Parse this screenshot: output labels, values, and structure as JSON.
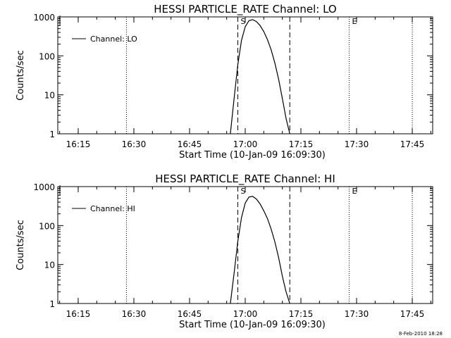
{
  "footer": {
    "timestamp": "8-Feb-2010 18:28"
  },
  "chart_data": [
    {
      "type": "line",
      "title": "HESSI PARTICLE_RATE Channel: LO",
      "xlabel": "Start Time (10-Jan-09 16:09:30)",
      "ylabel": "Counts/sec",
      "y_scale": "log",
      "ylim": [
        1,
        1000
      ],
      "x_unit": "minutes after 16:09:30",
      "xlim": [
        0,
        101
      ],
      "x_tick_labels": [
        "16:15",
        "16:30",
        "16:45",
        "17:00",
        "17:15",
        "17:30",
        "17:45"
      ],
      "y_tick_labels": [
        "1",
        "10",
        "100",
        "1000"
      ],
      "legend": {
        "position": "top-left",
        "entries": [
          "Channel: LO"
        ]
      },
      "markers": [
        {
          "label": "S",
          "time": "16:58",
          "style": "dashed"
        },
        {
          "label": "",
          "time": "17:12",
          "style": "dashed"
        },
        {
          "label": "E",
          "time": "17:28",
          "style": "dotted"
        },
        {
          "label": "",
          "time": "16:28",
          "style": "dotted"
        },
        {
          "label": "",
          "time": "17:45",
          "style": "dotted"
        }
      ],
      "series": [
        {
          "name": "Channel: LO",
          "x": [
            "16:56",
            "16:57",
            "16:58",
            "16:59",
            "17:00",
            "17:01",
            "17:02",
            "17:03",
            "17:04",
            "17:05",
            "17:06",
            "17:07",
            "17:08",
            "17:09",
            "17:10",
            "17:11",
            "17:12"
          ],
          "y": [
            1,
            8,
            60,
            250,
            560,
            800,
            850,
            760,
            600,
            420,
            260,
            140,
            65,
            25,
            8,
            2.5,
            1
          ]
        }
      ]
    },
    {
      "type": "line",
      "title": "HESSI PARTICLE_RATE Channel: HI",
      "xlabel": "Start Time (10-Jan-09 16:09:30)",
      "ylabel": "Counts/sec",
      "y_scale": "log",
      "ylim": [
        1,
        1000
      ],
      "x_unit": "minutes after 16:09:30",
      "xlim": [
        0,
        101
      ],
      "x_tick_labels": [
        "16:15",
        "16:30",
        "16:45",
        "17:00",
        "17:15",
        "17:30",
        "17:45"
      ],
      "y_tick_labels": [
        "1",
        "10",
        "100",
        "1000"
      ],
      "legend": {
        "position": "top-left",
        "entries": [
          "Channel: HI"
        ]
      },
      "markers": [
        {
          "label": "S",
          "time": "16:58",
          "style": "dashed"
        },
        {
          "label": "",
          "time": "17:12",
          "style": "dashed"
        },
        {
          "label": "E",
          "time": "17:28",
          "style": "dotted"
        },
        {
          "label": "",
          "time": "16:28",
          "style": "dotted"
        },
        {
          "label": "",
          "time": "17:45",
          "style": "dotted"
        }
      ],
      "series": [
        {
          "name": "Channel: HI",
          "x": [
            "16:56",
            "16:57",
            "16:58",
            "16:59",
            "17:00",
            "17:01",
            "17:02",
            "17:03",
            "17:04",
            "17:05",
            "17:06",
            "17:07",
            "17:08",
            "17:09",
            "17:10",
            "17:11",
            "17:12"
          ],
          "y": [
            1,
            6,
            40,
            160,
            380,
            540,
            560,
            480,
            360,
            240,
            150,
            80,
            38,
            15,
            5,
            2,
            1
          ]
        }
      ]
    }
  ]
}
